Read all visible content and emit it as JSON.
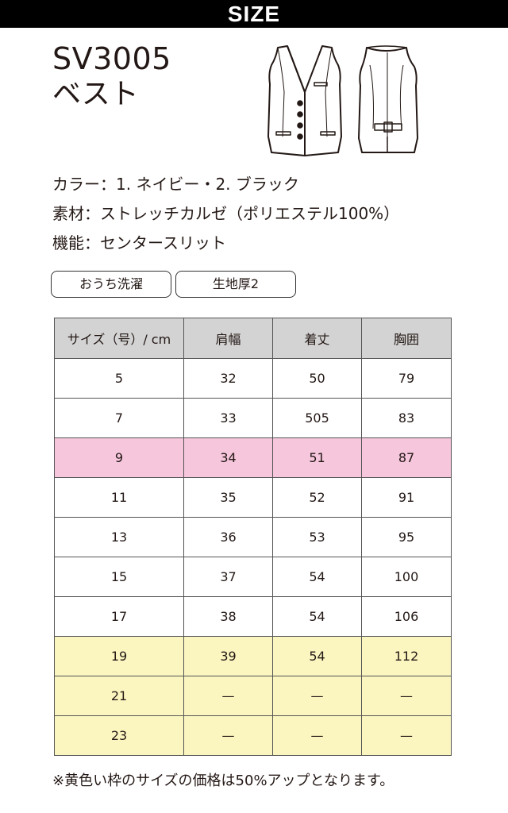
{
  "header": {
    "title": "SIZE"
  },
  "product": {
    "code": "SV3005",
    "name": "ベスト"
  },
  "specs": {
    "color": "カラー：1. ネイビー・2. ブラック",
    "material": "素材：ストレッチカルゼ（ポリエステル100%）",
    "function": "機能：センタースリット"
  },
  "tags": [
    "おうち洗濯",
    "生地厚2"
  ],
  "table": {
    "headers": [
      "サイズ（号）/ cm",
      "肩幅",
      "着丈",
      "胸囲"
    ],
    "rows": [
      {
        "highlight": "none",
        "cells": [
          "5",
          "32",
          "50",
          "79"
        ]
      },
      {
        "highlight": "none",
        "cells": [
          "7",
          "33",
          "505",
          "83"
        ]
      },
      {
        "highlight": "pink",
        "cells": [
          "9",
          "34",
          "51",
          "87"
        ]
      },
      {
        "highlight": "none",
        "cells": [
          "11",
          "35",
          "52",
          "91"
        ]
      },
      {
        "highlight": "none",
        "cells": [
          "13",
          "36",
          "53",
          "95"
        ]
      },
      {
        "highlight": "none",
        "cells": [
          "15",
          "37",
          "54",
          "100"
        ]
      },
      {
        "highlight": "none",
        "cells": [
          "17",
          "38",
          "54",
          "106"
        ]
      },
      {
        "highlight": "yellow",
        "cells": [
          "19",
          "39",
          "54",
          "112"
        ]
      },
      {
        "highlight": "yellow",
        "cells": [
          "21",
          "—",
          "—",
          "—"
        ]
      },
      {
        "highlight": "yellow",
        "cells": [
          "23",
          "—",
          "—",
          "—"
        ]
      }
    ]
  },
  "colors": {
    "pink_row": "#f6c6dc",
    "yellow_row": "#fbf6c0",
    "header_bg": "#d3d3d3",
    "bar": "#000000"
  },
  "footnote": "※黄色い枠のサイズの価格は50%アップとなります。"
}
